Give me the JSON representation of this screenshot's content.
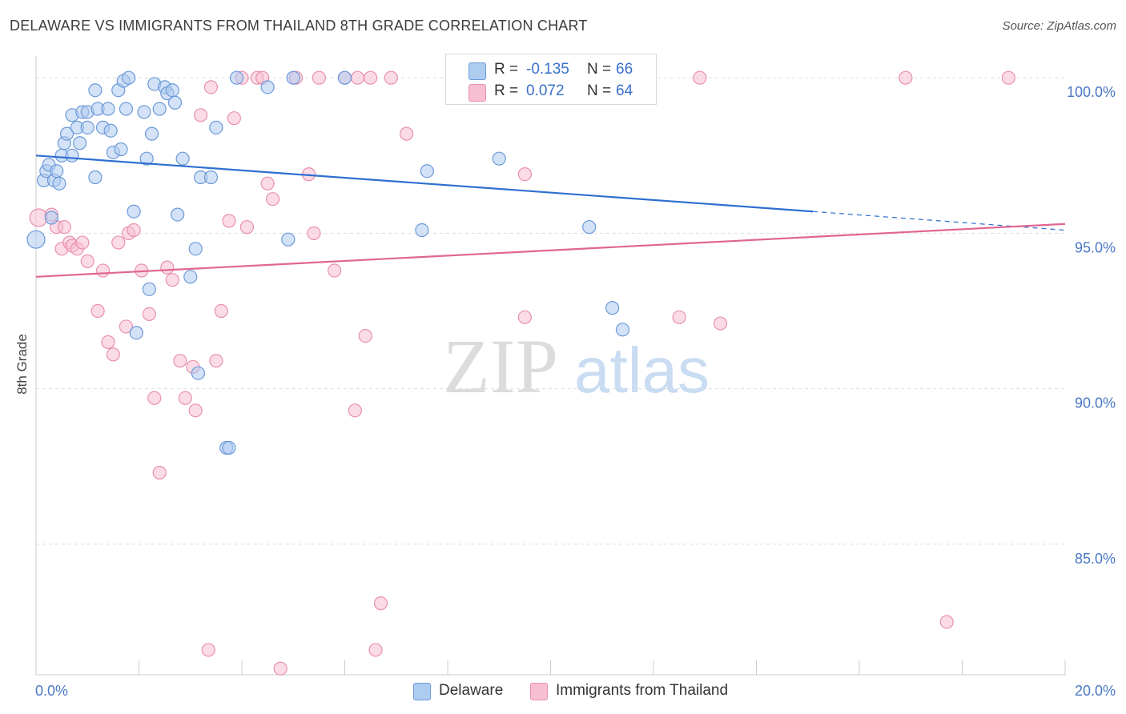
{
  "title": "DELAWARE VS IMMIGRANTS FROM THAILAND 8TH GRADE CORRELATION CHART",
  "source": "Source: ZipAtlas.com",
  "watermark": {
    "zip": "ZIP",
    "atlas": "atlas"
  },
  "legend": {
    "r_label": "R =",
    "n_label": "N =",
    "series": [
      {
        "name": "Delaware",
        "r": "-0.135",
        "n": "66"
      },
      {
        "name": "Immigrants from Thailand",
        "r": "0.072",
        "n": "64"
      }
    ]
  },
  "colors": {
    "delaware_fill": "#aecbf0",
    "delaware_stroke": "#6c9ad9",
    "delaware_line": "#2f6fd0",
    "thailand_fill": "#f7bfd1",
    "thailand_stroke": "#e990ae",
    "thailand_line": "#e06690",
    "axis_text": "#4a78c4",
    "grid": "#dddddd"
  },
  "chart_data": {
    "type": "scatter",
    "ylabel": "8th Grade",
    "xlim": [
      0,
      20
    ],
    "ylim": [
      80.8,
      100.7
    ],
    "x_tick_labels": [
      {
        "x": 0,
        "label": "0.0%"
      },
      {
        "x": 20,
        "label": "20.0%"
      }
    ],
    "y_tick_labels": [
      {
        "y": 100,
        "label": "100.0%"
      },
      {
        "y": 95,
        "label": "95.0%"
      },
      {
        "y": 90,
        "label": "90.0%"
      },
      {
        "y": 85,
        "label": "85.0%"
      }
    ],
    "x_minor_ticks": [
      0,
      2,
      4,
      6,
      8,
      10,
      12,
      14,
      16,
      18,
      20
    ],
    "grid": true,
    "series": [
      {
        "name": "Delaware",
        "trend": {
          "x0": 0,
          "y0": 97.5,
          "x1": 15.1,
          "y1": 95.7,
          "dash_to_x": 20,
          "dash_to_y": 95.1
        },
        "points": [
          [
            0.0,
            94.8,
            11
          ],
          [
            0.15,
            96.7,
            8
          ],
          [
            0.2,
            97.0,
            8
          ],
          [
            0.25,
            97.2,
            8
          ],
          [
            0.3,
            95.5,
            8
          ],
          [
            0.35,
            96.7,
            8
          ],
          [
            0.4,
            97.0,
            8
          ],
          [
            0.45,
            96.6,
            8
          ],
          [
            0.5,
            97.5,
            8
          ],
          [
            0.55,
            97.9,
            8
          ],
          [
            0.6,
            98.2,
            8
          ],
          [
            0.7,
            97.5,
            8
          ],
          [
            0.7,
            98.8,
            8
          ],
          [
            0.8,
            98.4,
            8
          ],
          [
            0.85,
            97.9,
            8
          ],
          [
            0.9,
            98.9,
            8
          ],
          [
            1.0,
            98.9,
            8
          ],
          [
            1.0,
            98.4,
            8
          ],
          [
            1.15,
            96.8,
            8
          ],
          [
            1.15,
            99.6,
            8
          ],
          [
            1.2,
            99.0,
            8
          ],
          [
            1.3,
            98.4,
            8
          ],
          [
            1.4,
            99.0,
            8
          ],
          [
            1.45,
            98.3,
            8
          ],
          [
            1.5,
            97.6,
            8
          ],
          [
            1.6,
            99.6,
            8
          ],
          [
            1.65,
            97.7,
            8
          ],
          [
            1.7,
            99.9,
            8
          ],
          [
            1.75,
            99.0,
            8
          ],
          [
            1.8,
            100.0,
            8
          ],
          [
            1.9,
            95.7,
            8
          ],
          [
            1.95,
            91.8,
            8
          ],
          [
            2.1,
            98.9,
            8
          ],
          [
            2.15,
            97.4,
            8
          ],
          [
            2.2,
            93.2,
            8
          ],
          [
            2.25,
            98.2,
            8
          ],
          [
            2.3,
            99.8,
            8
          ],
          [
            2.4,
            99.0,
            8
          ],
          [
            2.5,
            99.7,
            8
          ],
          [
            2.55,
            99.5,
            8
          ],
          [
            2.65,
            99.6,
            8
          ],
          [
            2.7,
            99.2,
            8
          ],
          [
            2.75,
            95.6,
            8
          ],
          [
            2.85,
            97.4,
            8
          ],
          [
            3.0,
            93.6,
            8
          ],
          [
            3.1,
            94.5,
            8
          ],
          [
            3.15,
            90.5,
            8
          ],
          [
            3.2,
            96.8,
            8
          ],
          [
            3.4,
            96.8,
            8
          ],
          [
            3.5,
            98.4,
            8
          ],
          [
            3.7,
            88.1,
            8
          ],
          [
            3.75,
            88.1,
            8
          ],
          [
            3.9,
            100.0,
            8
          ],
          [
            4.5,
            99.7,
            8
          ],
          [
            4.9,
            94.8,
            8
          ],
          [
            5.0,
            100.0,
            8
          ],
          [
            6.0,
            100.0,
            8
          ],
          [
            7.5,
            95.1,
            8
          ],
          [
            7.6,
            97.0,
            8
          ],
          [
            9.0,
            97.4,
            8
          ],
          [
            10.0,
            100.0,
            8
          ],
          [
            10.75,
            95.2,
            8
          ],
          [
            11.2,
            92.6,
            8
          ],
          [
            11.4,
            91.9,
            8
          ],
          [
            11.5,
            100.0,
            8
          ],
          [
            11.6,
            100.0,
            8
          ]
        ]
      },
      {
        "name": "Immigrants from Thailand",
        "trend": {
          "x0": 0,
          "y0": 93.6,
          "x1": 20,
          "y1": 95.3
        },
        "points": [
          [
            0.05,
            95.5,
            11
          ],
          [
            0.3,
            95.6,
            8
          ],
          [
            0.4,
            95.2,
            8
          ],
          [
            0.5,
            94.5,
            8
          ],
          [
            0.55,
            95.2,
            8
          ],
          [
            0.65,
            94.7,
            8
          ],
          [
            0.7,
            94.6,
            8
          ],
          [
            0.8,
            94.5,
            8
          ],
          [
            0.9,
            94.7,
            8
          ],
          [
            1.0,
            94.1,
            8
          ],
          [
            1.2,
            92.5,
            8
          ],
          [
            1.3,
            93.8,
            8
          ],
          [
            1.4,
            91.5,
            8
          ],
          [
            1.5,
            91.1,
            8
          ],
          [
            1.6,
            94.7,
            8
          ],
          [
            1.75,
            92.0,
            8
          ],
          [
            1.8,
            95.0,
            8
          ],
          [
            1.9,
            95.1,
            8
          ],
          [
            2.05,
            93.8,
            8
          ],
          [
            2.2,
            92.4,
            8
          ],
          [
            2.3,
            89.7,
            8
          ],
          [
            2.4,
            87.3,
            8
          ],
          [
            2.55,
            93.9,
            8
          ],
          [
            2.65,
            93.5,
            8
          ],
          [
            2.8,
            90.9,
            8
          ],
          [
            2.9,
            89.7,
            8
          ],
          [
            3.05,
            90.7,
            8
          ],
          [
            3.1,
            89.3,
            8
          ],
          [
            3.2,
            98.8,
            8
          ],
          [
            3.35,
            81.6,
            8
          ],
          [
            3.4,
            99.7,
            8
          ],
          [
            3.5,
            90.9,
            8
          ],
          [
            3.6,
            92.5,
            8
          ],
          [
            3.75,
            95.4,
            8
          ],
          [
            3.85,
            98.7,
            8
          ],
          [
            4.0,
            100.0,
            8
          ],
          [
            4.1,
            95.2,
            8
          ],
          [
            4.3,
            100.0,
            8
          ],
          [
            4.4,
            100.0,
            8
          ],
          [
            4.5,
            96.6,
            8
          ],
          [
            4.6,
            96.1,
            8
          ],
          [
            4.75,
            81.0,
            8
          ],
          [
            5.05,
            100.0,
            8
          ],
          [
            5.3,
            96.9,
            8
          ],
          [
            5.4,
            95.0,
            8
          ],
          [
            5.5,
            100.0,
            8
          ],
          [
            5.8,
            93.8,
            8
          ],
          [
            6.0,
            100.0,
            8
          ],
          [
            6.2,
            89.3,
            8
          ],
          [
            6.25,
            100.0,
            8
          ],
          [
            6.4,
            91.7,
            8
          ],
          [
            6.5,
            100.0,
            8
          ],
          [
            6.6,
            81.6,
            8
          ],
          [
            6.7,
            83.1,
            8
          ],
          [
            6.9,
            100.0,
            8
          ],
          [
            7.2,
            98.2,
            8
          ],
          [
            9.5,
            92.3,
            8
          ],
          [
            9.5,
            96.9,
            8
          ],
          [
            12.5,
            92.3,
            8
          ],
          [
            12.9,
            100.0,
            8
          ],
          [
            13.3,
            92.1,
            8
          ],
          [
            17.7,
            82.5,
            8
          ],
          [
            18.9,
            100.0,
            8
          ],
          [
            16.9,
            100.0,
            8
          ]
        ]
      }
    ]
  }
}
